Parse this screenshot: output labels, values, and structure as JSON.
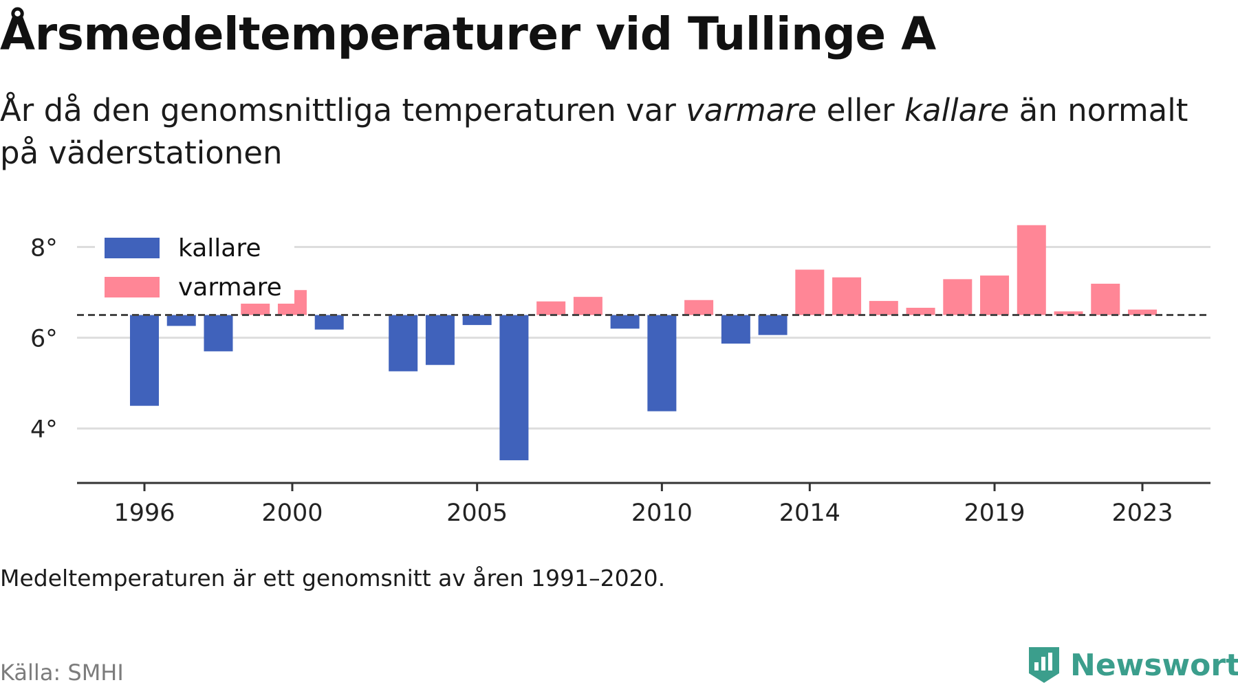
{
  "title": "Årsmedeltemperaturer vid Tullinge A",
  "subtitle": {
    "part1": "År då den genomsnittliga temperaturen var ",
    "warmer_word": "varmare",
    "part2": " eller ",
    "colder_word": "kallare",
    "part3": " än normalt på väderstationen"
  },
  "note": "Medeltemperaturen är ett genomsnitt av åren 1991–2020.",
  "source": "Källa: SMHI",
  "logo": {
    "text": "Newsworthy",
    "icon": "newsworthy-logo-icon",
    "color": "#3b9e8c"
  },
  "colors": {
    "colder": "#4062bb",
    "warmer": "#ff8696",
    "grid": "#dddddd",
    "axis": "#333333",
    "reference": "#444444"
  },
  "chart_data": {
    "type": "bar",
    "baseline": 6.5,
    "baseline_style": "dashed",
    "x": [
      1996,
      1997,
      1998,
      1999,
      2000,
      2001,
      2002,
      2003,
      2004,
      2005,
      2006,
      2007,
      2008,
      2009,
      2010,
      2011,
      2012,
      2013,
      2014,
      2015,
      2016,
      2017,
      2018,
      2019,
      2020,
      2021,
      2022,
      2023
    ],
    "values": [
      4.5,
      6.26,
      5.7,
      6.88,
      7.05,
      6.18,
      null,
      5.26,
      5.4,
      6.28,
      3.3,
      6.8,
      6.9,
      6.2,
      4.38,
      6.83,
      5.87,
      6.06,
      7.5,
      7.33,
      6.81,
      6.66,
      7.29,
      7.37,
      8.48,
      6.58,
      7.19,
      6.62
    ],
    "x_ticks": [
      1996,
      2000,
      2005,
      2010,
      2014,
      2019,
      2023
    ],
    "y_ticks": [
      4,
      6,
      8
    ],
    "y_tick_labels": [
      "4°",
      "6°",
      "8°"
    ],
    "ylim": [
      2.8,
      8.9
    ],
    "grid": true,
    "legend": {
      "position": "top-left",
      "items": [
        {
          "name": "kallare",
          "color": "#4062bb"
        },
        {
          "name": "varmare",
          "color": "#ff8696"
        }
      ]
    }
  }
}
